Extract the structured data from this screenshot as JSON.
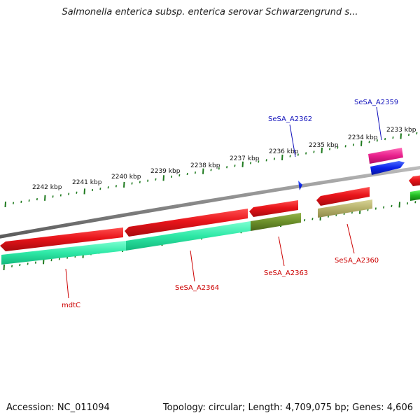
{
  "title": "Salmonella enterica subsp. enterica serovar Schwarzengrund s...",
  "footer": {
    "accession": "Accession: NC_011094",
    "topology": "Topology: circular; Length: 4,709,075 bp; Genes: 4,606"
  },
  "colors": {
    "backbone": "#8a8a8a",
    "ticks": "#1e7a1e",
    "cds_red": "#e8141a",
    "gene_teal": "#2ee8a6",
    "olive": "#6b8f2a",
    "khaki": "#b5b06a",
    "magenta": "#e8208c",
    "blue": "#0a22e8",
    "green": "#22bb22",
    "label_red": "#cc0000",
    "label_blue": "#1010bb"
  },
  "scale": {
    "unit": "kbp",
    "labels": [
      "2242 kbp",
      "2241 kbp",
      "2240 kbp",
      "2239 kbp",
      "2238 kbp",
      "2237 kbp",
      "2236 kbp",
      "2235 kbp",
      "2234 kbp",
      "2233 kbp"
    ]
  },
  "features": [
    {
      "id": "mdtC",
      "label": "mdtC",
      "label_color": "red"
    },
    {
      "id": "SeSA_A2364",
      "label": "SeSA_A2364",
      "label_color": "red"
    },
    {
      "id": "SeSA_A2363",
      "label": "SeSA_A2363",
      "label_color": "red"
    },
    {
      "id": "SeSA_A2360",
      "label": "SeSA_A2360",
      "label_color": "red"
    },
    {
      "id": "SeSA_A2362",
      "label": "SeSA_A2362",
      "label_color": "blue"
    },
    {
      "id": "SeSA_A2359",
      "label": "SeSA_A2359",
      "label_color": "blue"
    }
  ]
}
